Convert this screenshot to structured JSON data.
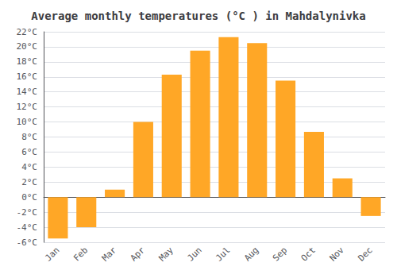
{
  "chart_data": {
    "type": "bar",
    "title": "Average monthly temperatures (°C ) in Mahdalynivka",
    "categories": [
      "Jan",
      "Feb",
      "Mar",
      "Apr",
      "May",
      "Jun",
      "Jul",
      "Aug",
      "Sep",
      "Oct",
      "Nov",
      "Dec"
    ],
    "values": [
      -5.5,
      -4.0,
      1.0,
      10.0,
      16.3,
      19.5,
      21.3,
      20.5,
      15.5,
      8.7,
      2.5,
      -2.5
    ],
    "color": "#FFA726",
    "ylim": [
      -6,
      22
    ],
    "yticks": [
      {
        "value": -6,
        "label": "-6°C"
      },
      {
        "value": -4,
        "label": "-4°C"
      },
      {
        "value": -2,
        "label": "-2°C"
      },
      {
        "value": 0,
        "label": "0°C"
      },
      {
        "value": 2,
        "label": "2°C"
      },
      {
        "value": 4,
        "label": "4°C"
      },
      {
        "value": 6,
        "label": "6°C"
      },
      {
        "value": 8,
        "label": "8°C"
      },
      {
        "value": 10,
        "label": "10°C"
      },
      {
        "value": 12,
        "label": "12°C"
      },
      {
        "value": 14,
        "label": "14°C"
      },
      {
        "value": 16,
        "label": "16°C"
      },
      {
        "value": 18,
        "label": "18°C"
      },
      {
        "value": 20,
        "label": "20°C"
      },
      {
        "value": 22,
        "label": "22°C"
      }
    ],
    "grid": true
  }
}
